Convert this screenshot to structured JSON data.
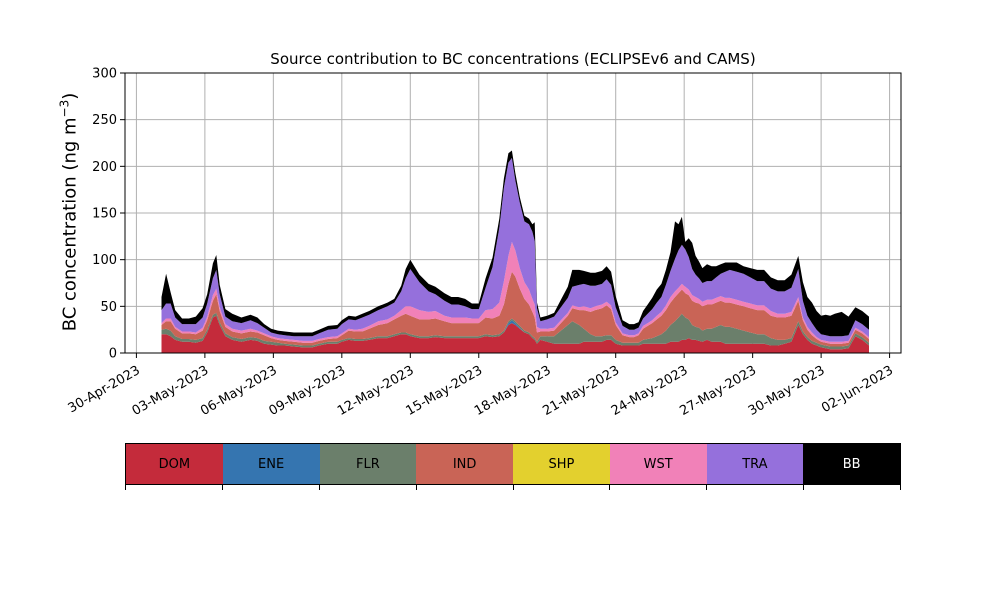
{
  "chart_data": {
    "type": "area",
    "stacked": true,
    "title": "Source contribution to BC concentrations (ECLIPSEv6 and CAMS)",
    "ylabel_main": "BC concentration (ng m",
    "ylabel_sup": "−3",
    "ylabel_close": ")",
    "ylim": [
      0,
      300
    ],
    "yticks": [
      0,
      50,
      100,
      150,
      200,
      250,
      300
    ],
    "xlim_days": [
      -0.5,
      33.5
    ],
    "xticks": [
      {
        "day": 0,
        "label": "30-Apr-2023"
      },
      {
        "day": 3,
        "label": "03-May-2023"
      },
      {
        "day": 6,
        "label": "06-May-2023"
      },
      {
        "day": 9,
        "label": "09-May-2023"
      },
      {
        "day": 12,
        "label": "12-May-2023"
      },
      {
        "day": 15,
        "label": "15-May-2023"
      },
      {
        "day": 18,
        "label": "18-May-2023"
      },
      {
        "day": 21,
        "label": "21-May-2023"
      },
      {
        "day": 24,
        "label": "24-May-2023"
      },
      {
        "day": 27,
        "label": "27-May-2023"
      },
      {
        "day": 30,
        "label": "30-May-2023"
      },
      {
        "day": 33,
        "label": "02-Jun-2023"
      }
    ],
    "grid": true,
    "legend_position": "below",
    "x_days": [
      1.1,
      1.3,
      1.5,
      1.7,
      2.0,
      2.3,
      2.6,
      2.9,
      3.1,
      3.35,
      3.5,
      3.65,
      3.9,
      4.2,
      4.6,
      5.0,
      5.3,
      5.6,
      5.9,
      6.2,
      6.5,
      6.9,
      7.3,
      7.7,
      8.0,
      8.4,
      8.8,
      9.0,
      9.3,
      9.6,
      9.9,
      10.2,
      10.6,
      11.0,
      11.3,
      11.6,
      11.8,
      12.0,
      12.4,
      12.8,
      13.1,
      13.5,
      13.8,
      14.1,
      14.4,
      14.7,
      15.0,
      15.3,
      15.6,
      15.9,
      16.1,
      16.3,
      16.45,
      16.6,
      16.8,
      17.0,
      17.2,
      17.35,
      17.45,
      17.55,
      17.7,
      18.0,
      18.3,
      18.6,
      18.9,
      19.1,
      19.4,
      19.6,
      19.9,
      20.1,
      20.4,
      20.6,
      20.8,
      21.0,
      21.3,
      21.6,
      21.8,
      22.0,
      22.2,
      22.4,
      22.6,
      22.8,
      23.0,
      23.2,
      23.4,
      23.6,
      23.75,
      23.9,
      24.05,
      24.2,
      24.35,
      24.5,
      24.65,
      24.8,
      25.0,
      25.2,
      25.4,
      25.6,
      25.8,
      26.0,
      26.3,
      26.6,
      26.9,
      27.2,
      27.5,
      27.8,
      28.1,
      28.4,
      28.7,
      29.0,
      29.2,
      29.4,
      29.6,
      29.8,
      30.0,
      30.2,
      30.4,
      30.6,
      30.9,
      31.2,
      31.5,
      31.8,
      32.1
    ],
    "series": [
      {
        "name": "DOM",
        "color": "#c42b3b",
        "values": [
          20,
          20,
          18,
          14,
          12,
          12,
          11,
          13,
          22,
          38,
          40,
          30,
          18,
          14,
          12,
          14,
          13,
          10,
          9,
          8,
          8,
          7,
          6,
          6,
          8,
          10,
          10,
          12,
          14,
          13,
          13,
          14,
          16,
          16,
          18,
          20,
          20,
          18,
          16,
          16,
          17,
          16,
          16,
          16,
          16,
          16,
          16,
          18,
          17,
          18,
          22,
          30,
          32,
          30,
          26,
          22,
          20,
          16,
          14,
          10,
          14,
          12,
          10,
          10,
          10,
          10,
          10,
          12,
          12,
          12,
          12,
          14,
          14,
          10,
          8,
          8,
          8,
          8,
          10,
          10,
          10,
          10,
          10,
          10,
          12,
          12,
          12,
          14,
          14,
          16,
          14,
          14,
          13,
          12,
          14,
          12,
          12,
          12,
          10,
          10,
          10,
          10,
          10,
          10,
          10,
          8,
          8,
          10,
          12,
          30,
          20,
          14,
          10,
          8,
          6,
          5,
          4,
          4,
          4,
          5,
          18,
          14,
          8
        ]
      },
      {
        "name": "ENE",
        "color": "#3575b0",
        "values": [
          0,
          0,
          0,
          0,
          0,
          0,
          0,
          0,
          0,
          0,
          0,
          0,
          0,
          0,
          0,
          0,
          0,
          0,
          0,
          0,
          0,
          0,
          0,
          0,
          0,
          0,
          0,
          0,
          0,
          0,
          0,
          0,
          0,
          0,
          0,
          0,
          0,
          0,
          0,
          0,
          0,
          0,
          0,
          0,
          0,
          0,
          0,
          0,
          0,
          0,
          0,
          2,
          3,
          2,
          1,
          0,
          0,
          0,
          0,
          0,
          0,
          0,
          0,
          0,
          0,
          0,
          0,
          0,
          0,
          0,
          0,
          0,
          0,
          0,
          0,
          0,
          0,
          0,
          0,
          0,
          0,
          0,
          0,
          0,
          0,
          0,
          0,
          0,
          0,
          0,
          0,
          0,
          0,
          0,
          0,
          0,
          0,
          0,
          0,
          0,
          0,
          0,
          0,
          0,
          0,
          0,
          0,
          0,
          0,
          0,
          0,
          0,
          0,
          0,
          0,
          0,
          0,
          0,
          0,
          0,
          0,
          0,
          0
        ]
      },
      {
        "name": "FLR",
        "color": "#6b7f6b",
        "values": [
          5,
          6,
          6,
          4,
          3,
          3,
          3,
          3,
          3,
          3,
          3,
          3,
          3,
          3,
          3,
          3,
          3,
          3,
          3,
          3,
          2,
          2,
          2,
          2,
          2,
          2,
          2,
          2,
          2,
          2,
          2,
          2,
          2,
          2,
          2,
          2,
          2,
          2,
          2,
          2,
          2,
          2,
          2,
          2,
          2,
          2,
          2,
          2,
          2,
          2,
          2,
          2,
          2,
          2,
          2,
          2,
          2,
          2,
          2,
          2,
          4,
          6,
          8,
          14,
          20,
          24,
          20,
          14,
          8,
          6,
          6,
          5,
          5,
          4,
          3,
          3,
          3,
          3,
          4,
          5,
          6,
          8,
          10,
          14,
          18,
          22,
          26,
          28,
          24,
          20,
          16,
          14,
          14,
          12,
          12,
          14,
          16,
          18,
          18,
          18,
          16,
          14,
          12,
          10,
          10,
          8,
          6,
          4,
          4,
          4,
          3,
          3,
          3,
          3,
          3,
          3,
          3,
          3,
          3,
          3,
          3,
          3,
          3
        ]
      },
      {
        "name": "IND",
        "color": "#c96456",
        "values": [
          5,
          8,
          10,
          8,
          6,
          6,
          6,
          8,
          10,
          15,
          20,
          12,
          7,
          6,
          6,
          6,
          6,
          6,
          4,
          3,
          3,
          3,
          3,
          3,
          3,
          3,
          4,
          5,
          8,
          8,
          8,
          10,
          12,
          14,
          16,
          18,
          20,
          20,
          18,
          18,
          18,
          16,
          14,
          14,
          14,
          14,
          14,
          18,
          18,
          20,
          28,
          40,
          50,
          48,
          40,
          34,
          30,
          26,
          22,
          10,
          5,
          5,
          6,
          8,
          10,
          14,
          16,
          20,
          24,
          28,
          30,
          32,
          28,
          16,
          8,
          6,
          6,
          8,
          12,
          14,
          16,
          18,
          20,
          22,
          24,
          26,
          26,
          26,
          26,
          26,
          26,
          26,
          26,
          26,
          26,
          26,
          26,
          26,
          26,
          26,
          26,
          26,
          26,
          26,
          26,
          24,
          24,
          24,
          24,
          22,
          12,
          8,
          6,
          4,
          3,
          3,
          3,
          3,
          3,
          3,
          4,
          4,
          4
        ]
      },
      {
        "name": "SHP",
        "color": "#e3d02e",
        "values": [
          0,
          0,
          0,
          0,
          0,
          0,
          0,
          0,
          0,
          0,
          0,
          0,
          0,
          0,
          0,
          0,
          0,
          0,
          0,
          0,
          0,
          0,
          0,
          0,
          0,
          0,
          0,
          0,
          0,
          0,
          0,
          0,
          0,
          0,
          0,
          0,
          0,
          0,
          0,
          0,
          0,
          0,
          0,
          0,
          0,
          0,
          0,
          0,
          0,
          0,
          0,
          0,
          0,
          0,
          0,
          0,
          0,
          0,
          0,
          0,
          0,
          0,
          0,
          0,
          0,
          0,
          0,
          0,
          0,
          0,
          0,
          0,
          0,
          0,
          0,
          0,
          0,
          0,
          0,
          0,
          0,
          0,
          0,
          0,
          0,
          0,
          0,
          0,
          0,
          0,
          0,
          0,
          0,
          0,
          0,
          0,
          0,
          0,
          0,
          0,
          0,
          0,
          0,
          0,
          0,
          0,
          0,
          0,
          0,
          0,
          0,
          0,
          0,
          0,
          0,
          0,
          0,
          0,
          0,
          0,
          0,
          0,
          0
        ]
      },
      {
        "name": "WST",
        "color": "#f181b8",
        "values": [
          2,
          3,
          3,
          2,
          2,
          2,
          2,
          3,
          4,
          6,
          6,
          4,
          3,
          3,
          3,
          3,
          2,
          2,
          2,
          2,
          2,
          2,
          2,
          2,
          2,
          2,
          2,
          2,
          2,
          2,
          3,
          3,
          4,
          4,
          4,
          6,
          8,
          10,
          10,
          8,
          8,
          6,
          6,
          6,
          6,
          5,
          5,
          8,
          10,
          14,
          25,
          30,
          32,
          28,
          22,
          18,
          16,
          14,
          14,
          6,
          3,
          3,
          3,
          3,
          3,
          3,
          3,
          4,
          4,
          4,
          4,
          4,
          4,
          3,
          2,
          2,
          2,
          2,
          3,
          3,
          3,
          4,
          4,
          5,
          6,
          6,
          6,
          6,
          7,
          6,
          6,
          6,
          5,
          5,
          5,
          5,
          5,
          5,
          5,
          5,
          5,
          5,
          5,
          5,
          5,
          5,
          4,
          4,
          4,
          4,
          3,
          3,
          3,
          2,
          2,
          2,
          2,
          2,
          2,
          2,
          2,
          2,
          2
        ]
      },
      {
        "name": "TRA",
        "color": "#9570dc",
        "values": [
          14,
          16,
          16,
          10,
          8,
          8,
          9,
          11,
          14,
          18,
          20,
          14,
          8,
          8,
          8,
          9,
          8,
          6,
          4,
          4,
          4,
          4,
          5,
          5,
          6,
          8,
          8,
          10,
          10,
          10,
          12,
          12,
          12,
          14,
          14,
          20,
          30,
          40,
          30,
          22,
          18,
          16,
          14,
          14,
          12,
          10,
          10,
          24,
          45,
          80,
          100,
          100,
          90,
          75,
          70,
          65,
          70,
          72,
          68,
          20,
          8,
          10,
          12,
          14,
          16,
          20,
          24,
          24,
          24,
          22,
          22,
          24,
          22,
          16,
          8,
          6,
          6,
          6,
          8,
          10,
          12,
          14,
          16,
          22,
          28,
          35,
          40,
          42,
          40,
          35,
          28,
          24,
          22,
          20,
          20,
          20,
          22,
          24,
          28,
          30,
          30,
          30,
          28,
          26,
          26,
          24,
          24,
          24,
          26,
          30,
          18,
          12,
          10,
          8,
          6,
          6,
          6,
          6,
          6,
          6,
          8,
          8,
          8
        ]
      },
      {
        "name": "BB",
        "color": "#000000",
        "values": [
          14,
          32,
          12,
          8,
          6,
          6,
          8,
          10,
          10,
          16,
          16,
          10,
          8,
          8,
          6,
          6,
          6,
          4,
          4,
          4,
          4,
          4,
          4,
          4,
          4,
          4,
          4,
          4,
          4,
          4,
          4,
          4,
          4,
          4,
          4,
          6,
          10,
          10,
          8,
          8,
          8,
          8,
          8,
          8,
          8,
          6,
          6,
          10,
          10,
          10,
          10,
          10,
          8,
          8,
          6,
          6,
          6,
          8,
          20,
          6,
          4,
          4,
          4,
          8,
          12,
          18,
          16,
          14,
          14,
          14,
          14,
          14,
          14,
          12,
          6,
          6,
          6,
          6,
          8,
          10,
          12,
          14,
          14,
          16,
          20,
          40,
          28,
          30,
          8,
          20,
          28,
          20,
          18,
          16,
          18,
          16,
          12,
          10,
          10,
          8,
          10,
          8,
          10,
          12,
          12,
          12,
          12,
          12,
          14,
          14,
          20,
          20,
          22,
          20,
          20,
          22,
          22,
          24,
          26,
          20,
          14,
          14,
          14
        ]
      }
    ]
  }
}
